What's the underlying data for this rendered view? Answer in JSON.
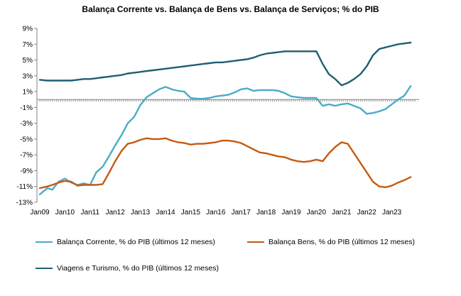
{
  "chart_data": {
    "type": "line",
    "title": "Balança Corrente vs. Balança de Bens vs. Balança de Serviços; % do PIB",
    "xlabel": "",
    "ylabel": "",
    "ylim": [
      -13,
      9
    ],
    "y_ticks": [
      "9%",
      "7%",
      "5%",
      "3%",
      "1%",
      "-1%",
      "-3%",
      "-5%",
      "-7%",
      "-9%",
      "-11%",
      "-13%"
    ],
    "x_ticks": [
      "Jan09",
      "Jan10",
      "Jan11",
      "Jan12",
      "Jan13",
      "Jan14",
      "Jan15",
      "Jan16",
      "Jan17",
      "Jan18",
      "Jan19",
      "Jan20",
      "Jan21",
      "Jan22",
      "Jan23"
    ],
    "x_range": [
      2009.0,
      2023.9
    ],
    "grid": false,
    "legend_position": "bottom",
    "series": [
      {
        "name": "Balança Corrente,  % do PIB (últimos 12 meses)",
        "color": "#4bacc6",
        "x": [
          2009.0,
          2009.3,
          2009.5,
          2009.75,
          2010.0,
          2010.25,
          2010.5,
          2010.75,
          2011.0,
          2011.25,
          2011.5,
          2011.75,
          2012.0,
          2012.25,
          2012.5,
          2012.75,
          2013.0,
          2013.25,
          2013.5,
          2013.75,
          2014.0,
          2014.25,
          2014.5,
          2014.75,
          2015.0,
          2015.25,
          2015.5,
          2015.75,
          2016.0,
          2016.25,
          2016.5,
          2016.75,
          2017.0,
          2017.25,
          2017.5,
          2017.75,
          2018.0,
          2018.25,
          2018.5,
          2018.75,
          2019.0,
          2019.25,
          2019.5,
          2019.75,
          2020.0,
          2020.25,
          2020.5,
          2020.75,
          2021.0,
          2021.25,
          2021.5,
          2021.75,
          2022.0,
          2022.25,
          2022.5,
          2022.75,
          2023.0,
          2023.25,
          2023.5,
          2023.75
        ],
        "y": [
          -12.0,
          -11.2,
          -11.4,
          -10.4,
          -10.0,
          -10.5,
          -10.8,
          -10.6,
          -10.8,
          -9.2,
          -8.5,
          -7.2,
          -5.8,
          -4.5,
          -3.0,
          -2.2,
          -0.7,
          0.3,
          0.8,
          1.3,
          1.6,
          1.3,
          1.1,
          1.0,
          0.2,
          0.1,
          0.1,
          0.2,
          0.4,
          0.5,
          0.6,
          0.9,
          1.3,
          1.4,
          1.1,
          1.2,
          1.2,
          1.2,
          1.1,
          0.8,
          0.4,
          0.3,
          0.2,
          0.2,
          0.2,
          -0.8,
          -0.6,
          -0.8,
          -0.6,
          -0.5,
          -0.8,
          -1.1,
          -1.8,
          -1.7,
          -1.5,
          -1.2,
          -0.6,
          0.0,
          0.5,
          1.7
        ]
      },
      {
        "name": "Balança Bens,  % do PIB (últimos 12 meses)",
        "color": "#c55a11",
        "x": [
          2009.0,
          2009.3,
          2009.5,
          2009.75,
          2010.0,
          2010.25,
          2010.5,
          2010.75,
          2011.0,
          2011.25,
          2011.5,
          2011.75,
          2012.0,
          2012.25,
          2012.5,
          2012.75,
          2013.0,
          2013.25,
          2013.5,
          2013.75,
          2014.0,
          2014.25,
          2014.5,
          2014.75,
          2015.0,
          2015.25,
          2015.5,
          2015.75,
          2016.0,
          2016.25,
          2016.5,
          2016.75,
          2017.0,
          2017.25,
          2017.5,
          2017.75,
          2018.0,
          2018.25,
          2018.5,
          2018.75,
          2019.0,
          2019.25,
          2019.5,
          2019.75,
          2020.0,
          2020.25,
          2020.5,
          2020.75,
          2021.0,
          2021.25,
          2021.5,
          2021.75,
          2022.0,
          2022.25,
          2022.5,
          2022.75,
          2023.0,
          2023.25,
          2023.5,
          2023.75
        ],
        "y": [
          -11.2,
          -11.0,
          -10.8,
          -10.5,
          -10.3,
          -10.4,
          -10.9,
          -10.8,
          -10.8,
          -10.8,
          -10.7,
          -9.3,
          -7.8,
          -6.5,
          -5.6,
          -5.4,
          -5.1,
          -4.9,
          -5.0,
          -5.0,
          -4.9,
          -5.2,
          -5.4,
          -5.5,
          -5.7,
          -5.6,
          -5.6,
          -5.5,
          -5.4,
          -5.2,
          -5.2,
          -5.3,
          -5.5,
          -5.9,
          -6.3,
          -6.7,
          -6.8,
          -7.0,
          -7.2,
          -7.3,
          -7.6,
          -7.8,
          -7.9,
          -7.8,
          -7.6,
          -7.8,
          -6.8,
          -6.0,
          -5.4,
          -5.6,
          -6.8,
          -8.0,
          -9.2,
          -10.4,
          -11.0,
          -11.1,
          -10.9,
          -10.5,
          -10.2,
          -9.8
        ]
      },
      {
        "name": "Viagens e Turismo,  % do PIB (últimos 12 meses)",
        "color": "#1f5f73",
        "x": [
          2009.0,
          2009.3,
          2009.5,
          2009.75,
          2010.0,
          2010.25,
          2010.5,
          2010.75,
          2011.0,
          2011.25,
          2011.5,
          2011.75,
          2012.0,
          2012.25,
          2012.5,
          2012.75,
          2013.0,
          2013.25,
          2013.5,
          2013.75,
          2014.0,
          2014.25,
          2014.5,
          2014.75,
          2015.0,
          2015.25,
          2015.5,
          2015.75,
          2016.0,
          2016.25,
          2016.5,
          2016.75,
          2017.0,
          2017.25,
          2017.5,
          2017.75,
          2018.0,
          2018.25,
          2018.5,
          2018.75,
          2019.0,
          2019.25,
          2019.5,
          2019.75,
          2020.0,
          2020.25,
          2020.5,
          2020.75,
          2021.0,
          2021.25,
          2021.5,
          2021.75,
          2022.0,
          2022.25,
          2022.5,
          2022.75,
          2023.0,
          2023.25,
          2023.5,
          2023.75
        ],
        "y": [
          2.5,
          2.4,
          2.4,
          2.4,
          2.4,
          2.4,
          2.5,
          2.6,
          2.6,
          2.7,
          2.8,
          2.9,
          3.0,
          3.1,
          3.3,
          3.4,
          3.5,
          3.6,
          3.7,
          3.8,
          3.9,
          4.0,
          4.1,
          4.2,
          4.3,
          4.4,
          4.5,
          4.6,
          4.7,
          4.7,
          4.8,
          4.9,
          5.0,
          5.1,
          5.3,
          5.6,
          5.8,
          5.9,
          6.0,
          6.1,
          6.1,
          6.1,
          6.1,
          6.1,
          6.1,
          4.5,
          3.2,
          2.6,
          1.8,
          2.1,
          2.6,
          3.2,
          4.2,
          5.6,
          6.4,
          6.6,
          6.8,
          7.0,
          7.1,
          7.2
        ]
      }
    ]
  }
}
